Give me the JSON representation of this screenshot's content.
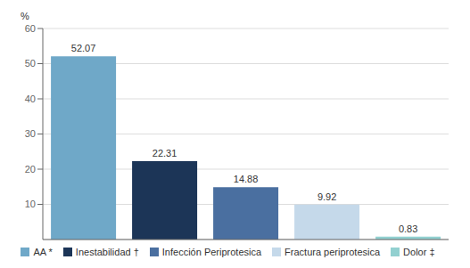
{
  "chart_data": {
    "type": "bar",
    "categories": [
      "AA *",
      "Inestabilidad †",
      "Infección Periprotesica",
      "Fractura periprotesica",
      "Dolor ‡"
    ],
    "values": [
      52.07,
      22.31,
      14.88,
      9.92,
      0.83
    ],
    "colors": [
      "#6fa8c8",
      "#1c3557",
      "#4a6fa0",
      "#c5d9ea",
      "#92d0d0"
    ],
    "ylabel": "%",
    "ylim": [
      0,
      60
    ],
    "yticks": [
      10,
      20,
      30,
      40,
      50,
      60
    ],
    "grid": true,
    "legend": "bottom",
    "data_labels": true,
    "tick_labels": "y"
  }
}
